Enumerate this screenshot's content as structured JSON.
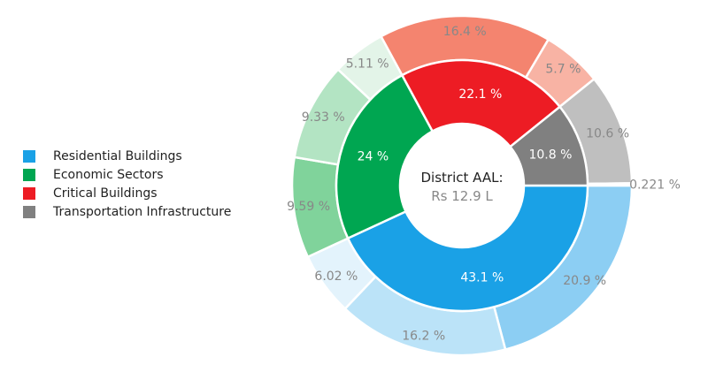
{
  "chart_data": {
    "type": "pie",
    "style": "nested donut",
    "center": {
      "line1": "District AAL:",
      "line2": "Rs 12.9 L"
    },
    "legend_position": "left",
    "inner": [
      {
        "name": "Residential Buildings",
        "value": 43.1,
        "label": "43.1 %",
        "color": "#1aa1e6"
      },
      {
        "name": "Economic Sectors",
        "value": 24.0,
        "label": "24 %",
        "color": "#00a651"
      },
      {
        "name": "Critical Buildings",
        "value": 22.1,
        "label": "22.1 %",
        "color": "#ed1c24"
      },
      {
        "name": "Transportation Infrastructure",
        "value": 10.8,
        "label": "10.8 %",
        "color": "#808080"
      }
    ],
    "outer": [
      {
        "group": "Residential Buildings",
        "value": 20.9,
        "label": "20.9 %",
        "color": "#8ccef3"
      },
      {
        "group": "Residential Buildings",
        "value": 16.2,
        "label": "16.2 %",
        "color": "#bbe3f8"
      },
      {
        "group": "Residential Buildings",
        "value": 6.02,
        "label": "6.02 %",
        "color": "#e3f3fc"
      },
      {
        "group": "Economic Sectors",
        "value": 9.59,
        "label": "9.59 %",
        "color": "#80d39b"
      },
      {
        "group": "Economic Sectors",
        "value": 9.33,
        "label": "9.33 %",
        "color": "#b3e4c3"
      },
      {
        "group": "Economic Sectors",
        "value": 5.11,
        "label": "5.11 %",
        "color": "#e3f4e8"
      },
      {
        "group": "Critical Buildings",
        "value": 16.4,
        "label": "16.4 %",
        "color": "#f4846f"
      },
      {
        "group": "Critical Buildings",
        "value": 5.7,
        "label": "5.7 %",
        "color": "#f8b3a4"
      },
      {
        "group": "Transportation Infrastructure",
        "value": 10.6,
        "label": "10.6 %",
        "color": "#bfbfbf"
      },
      {
        "group": "Transportation Infrastructure",
        "value": 0.221,
        "label": "0.221 %",
        "color": "#d9d9d9"
      }
    ]
  }
}
